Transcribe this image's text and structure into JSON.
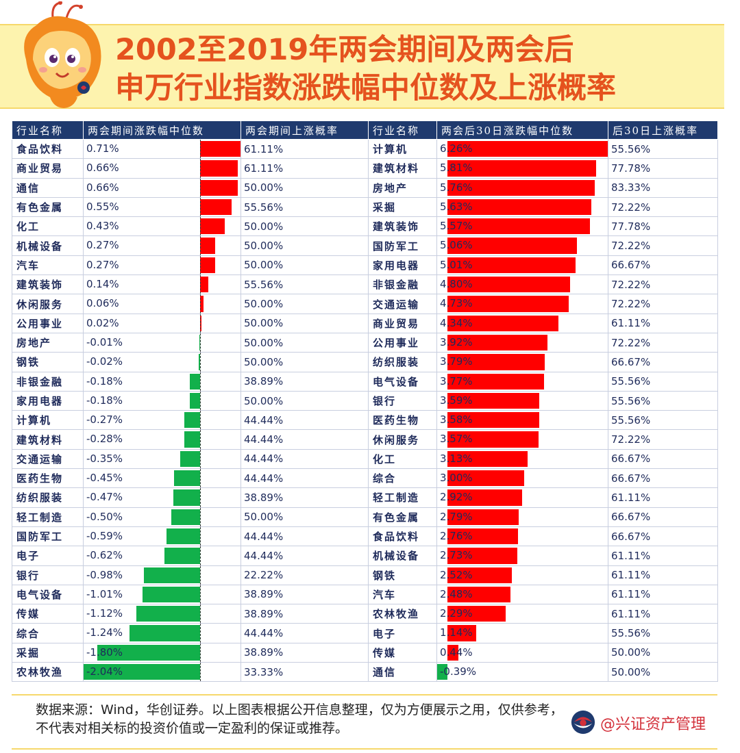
{
  "title": {
    "line1": "2002至2019年两会期间及两会后",
    "line2": "申万行业指数涨跌幅中位数及上涨概率"
  },
  "headers": {
    "h1": "行业名称",
    "h2": "两会期间涨跌幅中位数",
    "h3": "两会期间上涨概率",
    "h4": "行业名称",
    "h5": "两会后30日涨跌幅中位数",
    "h6": "后30日上涨概率"
  },
  "footer": {
    "source": "数据来源：Wind，华创证券。以上图表根据公开信息整理，仅为方便展示之用，仅供参考，不代表对相关标的投资价值或一定盈利的保证或推荐。",
    "brand": "@兴证资产管理"
  },
  "colors": {
    "positive": "#ff0000",
    "negative": "#12b04b",
    "header_bg": "#1f3a6e",
    "title": "#e5521e"
  },
  "chart_data": [
    {
      "type": "table",
      "title": "两会期间涨跌幅中位数",
      "columns": [
        "行业名称",
        "两会期间涨跌幅中位数",
        "两会期间上涨概率"
      ],
      "rows": [
        {
          "name": "食品饮料",
          "label": "0.71%",
          "value": 0.71,
          "prob": "61.11%"
        },
        {
          "name": "商业贸易",
          "label": "0.66%",
          "value": 0.66,
          "prob": "61.11%"
        },
        {
          "name": "通信",
          "label": "0.66%",
          "value": 0.66,
          "prob": "50.00%"
        },
        {
          "name": "有色金属",
          "label": "0.55%",
          "value": 0.55,
          "prob": "55.56%"
        },
        {
          "name": "化工",
          "label": "0.43%",
          "value": 0.43,
          "prob": "50.00%"
        },
        {
          "name": "机械设备",
          "label": "0.27%",
          "value": 0.27,
          "prob": "50.00%"
        },
        {
          "name": "汽车",
          "label": "0.27%",
          "value": 0.27,
          "prob": "50.00%"
        },
        {
          "name": "建筑装饰",
          "label": "0.14%",
          "value": 0.14,
          "prob": "55.56%"
        },
        {
          "name": "休闲服务",
          "label": "0.06%",
          "value": 0.06,
          "prob": "50.00%"
        },
        {
          "name": "公用事业",
          "label": "0.02%",
          "value": 0.02,
          "prob": "50.00%"
        },
        {
          "name": "房地产",
          "label": "-0.01%",
          "value": -0.01,
          "prob": "50.00%"
        },
        {
          "name": "钢铁",
          "label": "-0.02%",
          "value": -0.02,
          "prob": "50.00%"
        },
        {
          "name": "非银金融",
          "label": "-0.18%",
          "value": -0.18,
          "prob": "38.89%"
        },
        {
          "name": "家用电器",
          "label": "-0.18%",
          "value": -0.18,
          "prob": "50.00%"
        },
        {
          "name": "计算机",
          "label": "-0.27%",
          "value": -0.27,
          "prob": "44.44%"
        },
        {
          "name": "建筑材料",
          "label": "-0.28%",
          "value": -0.28,
          "prob": "44.44%"
        },
        {
          "name": "交通运输",
          "label": "-0.35%",
          "value": -0.35,
          "prob": "44.44%"
        },
        {
          "name": "医药生物",
          "label": "-0.45%",
          "value": -0.45,
          "prob": "44.44%"
        },
        {
          "name": "纺织服装",
          "label": "-0.47%",
          "value": -0.47,
          "prob": "38.89%"
        },
        {
          "name": "轻工制造",
          "label": "-0.50%",
          "value": -0.5,
          "prob": "50.00%"
        },
        {
          "name": "国防军工",
          "label": "-0.59%",
          "value": -0.59,
          "prob": "44.44%"
        },
        {
          "name": "电子",
          "label": "-0.62%",
          "value": -0.62,
          "prob": "44.44%"
        },
        {
          "name": "银行",
          "label": "-0.98%",
          "value": -0.98,
          "prob": "22.22%"
        },
        {
          "name": "电气设备",
          "label": "-1.01%",
          "value": -1.01,
          "prob": "38.89%"
        },
        {
          "name": "传媒",
          "label": "-1.12%",
          "value": -1.12,
          "prob": "38.89%"
        },
        {
          "name": "综合",
          "label": "-1.24%",
          "value": -1.24,
          "prob": "44.44%"
        },
        {
          "name": "采掘",
          "label": "-1.80%",
          "value": -1.8,
          "prob": "38.89%"
        },
        {
          "name": "农林牧渔",
          "label": "-2.04%",
          "value": -2.04,
          "prob": "33.33%"
        }
      ],
      "range": [
        -2.04,
        0.71
      ]
    },
    {
      "type": "table",
      "title": "两会后30日涨跌幅中位数",
      "columns": [
        "行业名称",
        "两会后30日涨跌幅中位数",
        "后30日上涨概率"
      ],
      "rows": [
        {
          "name": "计算机",
          "label": "6.26%",
          "value": 6.26,
          "prob": "55.56%"
        },
        {
          "name": "建筑材料",
          "label": "5.81%",
          "value": 5.81,
          "prob": "77.78%"
        },
        {
          "name": "房地产",
          "label": "5.76%",
          "value": 5.76,
          "prob": "83.33%"
        },
        {
          "name": "采掘",
          "label": "5.63%",
          "value": 5.63,
          "prob": "72.22%"
        },
        {
          "name": "建筑装饰",
          "label": "5.57%",
          "value": 5.57,
          "prob": "77.78%"
        },
        {
          "name": "国防军工",
          "label": "5.06%",
          "value": 5.06,
          "prob": "72.22%"
        },
        {
          "name": "家用电器",
          "label": "5.01%",
          "value": 5.01,
          "prob": "66.67%"
        },
        {
          "name": "非银金融",
          "label": "4.80%",
          "value": 4.8,
          "prob": "72.22%"
        },
        {
          "name": "交通运输",
          "label": "4.73%",
          "value": 4.73,
          "prob": "72.22%"
        },
        {
          "name": "商业贸易",
          "label": "4.34%",
          "value": 4.34,
          "prob": "61.11%"
        },
        {
          "name": "公用事业",
          "label": "3.92%",
          "value": 3.92,
          "prob": "72.22%"
        },
        {
          "name": "纺织服装",
          "label": "3.79%",
          "value": 3.79,
          "prob": "66.67%"
        },
        {
          "name": "电气设备",
          "label": "3.77%",
          "value": 3.77,
          "prob": "55.56%"
        },
        {
          "name": "银行",
          "label": "3.59%",
          "value": 3.59,
          "prob": "55.56%"
        },
        {
          "name": "医药生物",
          "label": "3.58%",
          "value": 3.58,
          "prob": "55.56%"
        },
        {
          "name": "休闲服务",
          "label": "3.57%",
          "value": 3.57,
          "prob": "72.22%"
        },
        {
          "name": "化工",
          "label": "3.13%",
          "value": 3.13,
          "prob": "66.67%"
        },
        {
          "name": "综合",
          "label": "3.00%",
          "value": 3.0,
          "prob": "66.67%"
        },
        {
          "name": "轻工制造",
          "label": "2.92%",
          "value": 2.92,
          "prob": "61.11%"
        },
        {
          "name": "有色金属",
          "label": "2.79%",
          "value": 2.79,
          "prob": "66.67%"
        },
        {
          "name": "食品饮料",
          "label": "2.76%",
          "value": 2.76,
          "prob": "66.67%"
        },
        {
          "name": "机械设备",
          "label": "2.73%",
          "value": 2.73,
          "prob": "61.11%"
        },
        {
          "name": "钢铁",
          "label": "2.52%",
          "value": 2.52,
          "prob": "61.11%"
        },
        {
          "name": "汽车",
          "label": "2.48%",
          "value": 2.48,
          "prob": "61.11%"
        },
        {
          "name": "农林牧渔",
          "label": "2.29%",
          "value": 2.29,
          "prob": "61.11%"
        },
        {
          "name": "电子",
          "label": "1.14%",
          "value": 1.14,
          "prob": "55.56%"
        },
        {
          "name": "传媒",
          "label": "0.44%",
          "value": 0.44,
          "prob": "50.00%"
        },
        {
          "name": "通信",
          "label": "-0.39%",
          "value": -0.39,
          "prob": "50.00%"
        }
      ],
      "range": [
        -0.39,
        6.26
      ]
    }
  ]
}
